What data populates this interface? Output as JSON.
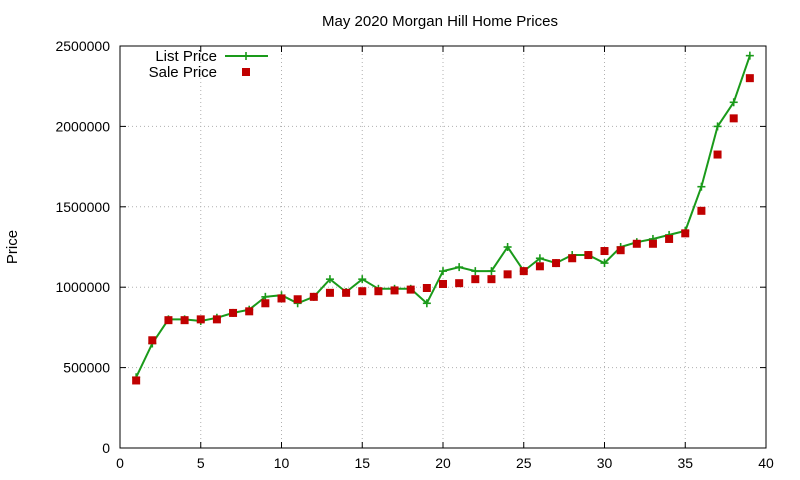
{
  "chart_data": {
    "type": "line",
    "title": "May 2020 Morgan Hill Home Prices",
    "xlabel": "",
    "ylabel": "Price",
    "xlim": [
      0,
      40
    ],
    "ylim": [
      0,
      2500000
    ],
    "xticks": [
      0,
      5,
      10,
      15,
      20,
      25,
      30,
      35,
      40
    ],
    "yticks": [
      0,
      500000,
      1000000,
      1500000,
      2000000,
      2500000
    ],
    "xtick_labels": [
      "0",
      "5",
      "10",
      "15",
      "20",
      "25",
      "30",
      "35",
      "40"
    ],
    "ytick_labels": [
      "0",
      "500000",
      "1000000",
      "1500000",
      "2000000",
      "2500000"
    ],
    "grid": true,
    "legend_position": "top-left",
    "series": [
      {
        "name": "List Price",
        "style": "line-with-plus-markers",
        "color": "#1a9a1a",
        "x": [
          1,
          2,
          3,
          4,
          5,
          6,
          7,
          8,
          9,
          10,
          11,
          12,
          13,
          14,
          15,
          16,
          17,
          18,
          19,
          20,
          21,
          22,
          23,
          24,
          25,
          26,
          27,
          28,
          29,
          30,
          31,
          32,
          33,
          34,
          35,
          36,
          37,
          38,
          39
        ],
        "values": [
          440000,
          650000,
          800000,
          800000,
          790000,
          810000,
          840000,
          860000,
          940000,
          950000,
          900000,
          940000,
          1050000,
          970000,
          1050000,
          990000,
          990000,
          990000,
          900000,
          1100000,
          1125000,
          1100000,
          1100000,
          1250000,
          1100000,
          1180000,
          1150000,
          1200000,
          1200000,
          1150000,
          1250000,
          1280000,
          1300000,
          1325000,
          1350000,
          1625000,
          2000000,
          2150000,
          2440000
        ]
      },
      {
        "name": "Sale Price",
        "style": "square-markers",
        "color": "#c00000",
        "x": [
          1,
          2,
          3,
          4,
          5,
          6,
          7,
          8,
          9,
          10,
          11,
          12,
          13,
          14,
          15,
          16,
          17,
          18,
          19,
          20,
          21,
          22,
          23,
          24,
          25,
          26,
          27,
          28,
          29,
          30,
          31,
          32,
          33,
          34,
          35,
          36,
          37,
          38,
          39
        ],
        "values": [
          420000,
          670000,
          795000,
          795000,
          800000,
          800000,
          840000,
          850000,
          900000,
          930000,
          925000,
          940000,
          965000,
          965000,
          975000,
          975000,
          980000,
          985000,
          995000,
          1020000,
          1025000,
          1050000,
          1050000,
          1080000,
          1100000,
          1130000,
          1150000,
          1180000,
          1200000,
          1225000,
          1230000,
          1270000,
          1270000,
          1300000,
          1335000,
          1475000,
          1825000,
          2050000,
          2300000
        ]
      }
    ]
  }
}
